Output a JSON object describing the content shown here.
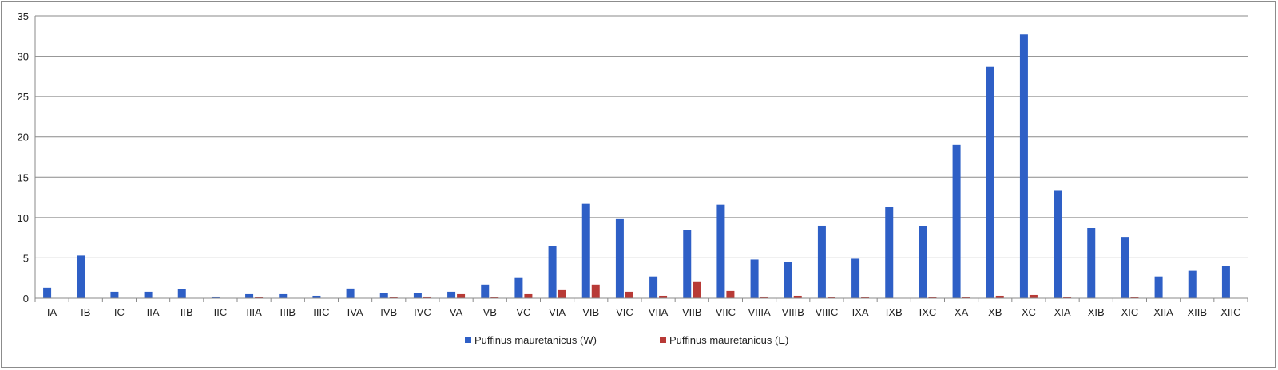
{
  "chart_data": {
    "type": "bar",
    "categories": [
      "IA",
      "IB",
      "IC",
      "IIA",
      "IIB",
      "IIC",
      "IIIA",
      "IIIB",
      "IIIC",
      "IVA",
      "IVB",
      "IVC",
      "VA",
      "VB",
      "VC",
      "VIA",
      "VIB",
      "VIC",
      "VIIA",
      "VIIB",
      "VIIC",
      "VIIIA",
      "VIIIB",
      "VIIIC",
      "IXA",
      "IXB",
      "IXC",
      "XA",
      "XB",
      "XC",
      "XIA",
      "XIB",
      "XIC",
      "XIIA",
      "XIIB",
      "XIIC"
    ],
    "series": [
      {
        "name": "Puffinus mauretanicus (W)",
        "color": "#2e5fc6",
        "values": [
          1.3,
          5.3,
          0.8,
          0.8,
          1.1,
          0.2,
          0.5,
          0.5,
          0.3,
          1.2,
          0.6,
          0.6,
          0.8,
          1.7,
          2.6,
          6.5,
          11.7,
          9.8,
          2.7,
          8.5,
          11.6,
          4.8,
          4.5,
          9.0,
          4.9,
          11.3,
          8.9,
          19.0,
          28.7,
          32.7,
          13.4,
          8.7,
          7.6,
          2.7,
          3.4,
          4.0
        ]
      },
      {
        "name": "Puffinus mauretanicus (E)",
        "color": "#b83a36",
        "values": [
          0,
          0,
          0,
          0,
          0,
          0,
          0.1,
          0,
          0,
          0,
          0.1,
          0.2,
          0.5,
          0.1,
          0.5,
          1.0,
          1.7,
          0.8,
          0.3,
          2.0,
          0.9,
          0.2,
          0.3,
          0.1,
          0.1,
          0,
          0.1,
          0.1,
          0.3,
          0.4,
          0.1,
          0,
          0.1,
          0,
          0,
          0
        ]
      }
    ],
    "yticks": [
      "0",
      "5",
      "10",
      "15",
      "20",
      "25",
      "30",
      "35"
    ],
    "ylim": [
      0,
      35
    ],
    "grid": true,
    "legend_position": "bottom"
  }
}
